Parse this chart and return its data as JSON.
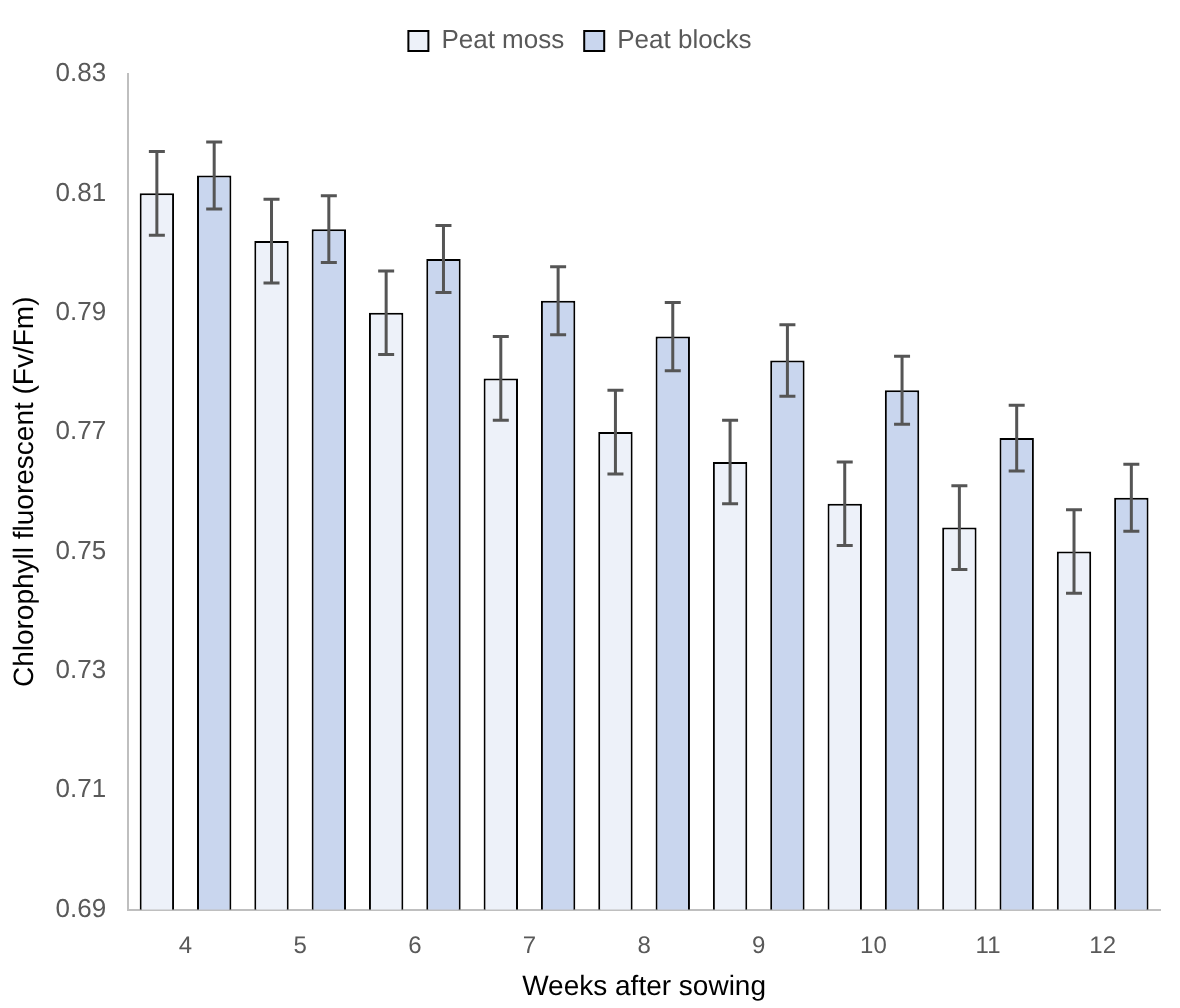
{
  "chart_data": {
    "type": "bar",
    "xlabel": "Weeks after sowing",
    "ylabel": "Chlorophyll fluorescent (Fv/Fm)",
    "categories": [
      "4",
      "5",
      "6",
      "7",
      "8",
      "9",
      "10",
      "11",
      "12"
    ],
    "series": [
      {
        "name": "Peat moss",
        "color": "#edf1f9",
        "values": [
          0.81,
          0.802,
          0.79,
          0.779,
          0.77,
          0.765,
          0.758,
          0.754,
          0.75
        ],
        "errors": [
          0.007,
          0.007,
          0.007,
          0.007,
          0.007,
          0.007,
          0.007,
          0.007,
          0.007
        ]
      },
      {
        "name": "Peat blocks",
        "color": "#c9d6ee",
        "values": [
          0.813,
          0.804,
          0.799,
          0.792,
          0.786,
          0.782,
          0.777,
          0.769,
          0.759
        ],
        "errors": [
          0.0056,
          0.0056,
          0.0056,
          0.0057,
          0.0057,
          0.006,
          0.0057,
          0.0055,
          0.0056
        ]
      }
    ],
    "ylim": [
      0.69,
      0.83
    ],
    "yticks": [
      0.69,
      0.71,
      0.73,
      0.75,
      0.77,
      0.79,
      0.81,
      0.83
    ],
    "grid": false,
    "legend": "top"
  }
}
